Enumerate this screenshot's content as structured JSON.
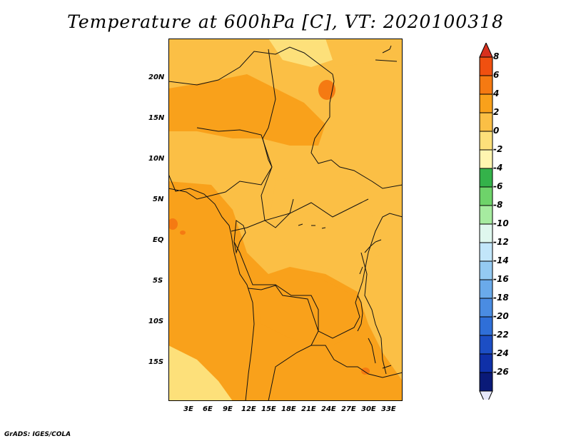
{
  "title": "Temperature at 600hPa [C], VT: 2020100318",
  "footer": "GrADS: IGES/COLA",
  "map": {
    "lat_labels": [
      "20N",
      "15N",
      "10N",
      "5N",
      "EQ",
      "5S",
      "10S",
      "15S"
    ],
    "lon_labels": [
      "3E",
      "6E",
      "9E",
      "12E",
      "15E",
      "18E",
      "21E",
      "24E",
      "27E",
      "30E",
      "33E"
    ],
    "fill_colors": {
      "light": "#fde07a",
      "medium": "#fbbf45",
      "deep": "#f9a11b",
      "warm": "#f57a12"
    }
  },
  "colorbar": {
    "labels": [
      "8",
      "6",
      "4",
      "2",
      "0",
      "-2",
      "-4",
      "-6",
      "-8",
      "-10",
      "-12",
      "-14",
      "-16",
      "-18",
      "-20",
      "-22",
      "-24",
      "-26"
    ],
    "colors": [
      "#e03010",
      "#f05010",
      "#f57a12",
      "#f9a11b",
      "#fbbf45",
      "#fde07a",
      "#fff5b0",
      "#34b24a",
      "#6ed36a",
      "#a6eba0",
      "#dff7ee",
      "#c2e6fa",
      "#94caf2",
      "#6aaaea",
      "#4a8ce2",
      "#2f6fd8",
      "#1c4ec4",
      "#0f30a8",
      "#0a1a78"
    ],
    "top_color": "#d8301e",
    "bottom_color": "#e6e8fa"
  }
}
